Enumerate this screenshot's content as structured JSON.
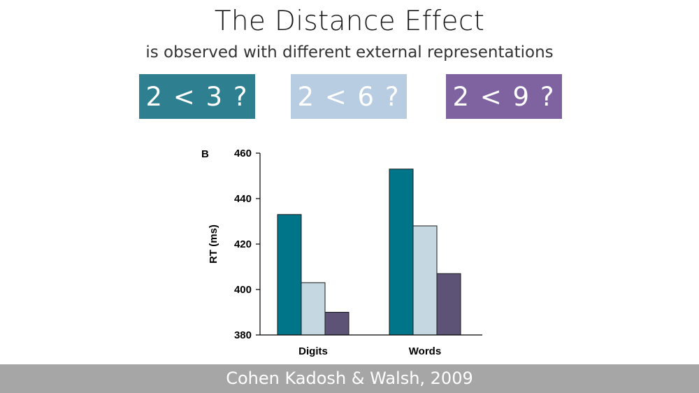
{
  "slide": {
    "title": "The Distance Effect",
    "subtitle": "is observed with different external representations",
    "footer": "Cohen Kadosh & Walsh, 2009"
  },
  "comparisons": [
    {
      "label": "2 < 3 ?",
      "color": "#2e7f8f"
    },
    {
      "label": "2 < 6 ?",
      "color": "#b8cde2"
    },
    {
      "label": "2 < 9 ?",
      "color": "#7f63a1"
    }
  ],
  "chart_data": {
    "type": "bar",
    "panel_label": "B",
    "categories": [
      "Digits",
      "Words"
    ],
    "series": [
      {
        "values": [
          433,
          453
        ],
        "color": "#007489"
      },
      {
        "values": [
          403,
          428
        ],
        "color": "#c5d8e2"
      },
      {
        "values": [
          390,
          407
        ],
        "color": "#5c5377"
      }
    ],
    "ylabel": "RT (ms)",
    "xlabel": "",
    "ylim": [
      380,
      460
    ],
    "yticks": [
      380,
      400,
      420,
      440,
      460
    ],
    "grid": false,
    "legend": "none"
  }
}
